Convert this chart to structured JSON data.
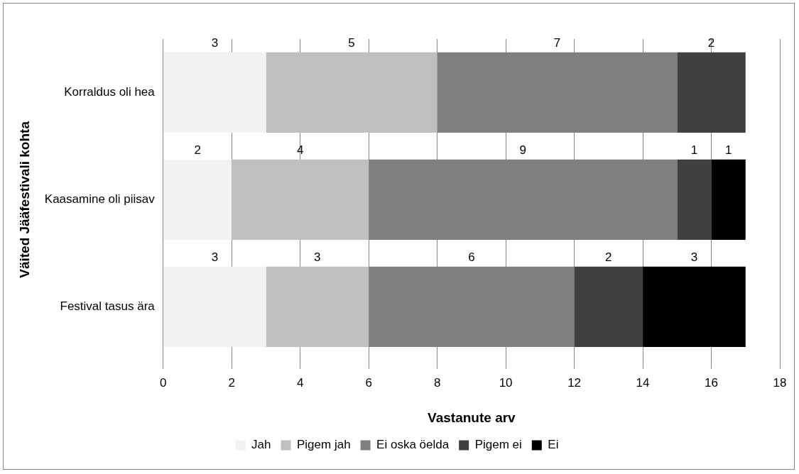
{
  "chart_data": {
    "type": "bar",
    "orientation": "horizontal",
    "stacked": true,
    "xlabel": "Vastanute arv",
    "ylabel": "Väited Jääfestivali kohta",
    "categories": [
      "Korraldus oli hea",
      "Kaasamine oli piisav",
      "Festival tasus ära"
    ],
    "series": [
      {
        "name": "Jah",
        "color": "#f2f2f2",
        "values": [
          3,
          2,
          3
        ]
      },
      {
        "name": "Pigem jah",
        "color": "#bfbfbf",
        "values": [
          5,
          4,
          3
        ]
      },
      {
        "name": "Ei oska öelda",
        "color": "#7f7f7f",
        "values": [
          7,
          9,
          6
        ]
      },
      {
        "name": "Pigem ei",
        "color": "#404040",
        "values": [
          2,
          1,
          2
        ]
      },
      {
        "name": "Ei",
        "color": "#000000",
        "values": [
          null,
          1,
          3
        ]
      }
    ],
    "xlim": [
      0,
      18
    ],
    "xticks": [
      0,
      2,
      4,
      6,
      8,
      10,
      12,
      14,
      16,
      18
    ],
    "grid": "x",
    "legend": "bottom",
    "data_labels": true
  }
}
